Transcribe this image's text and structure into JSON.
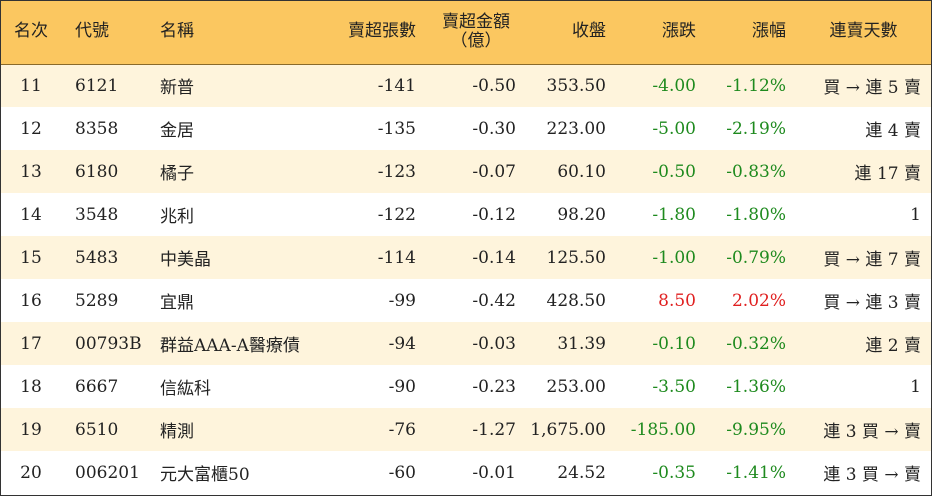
{
  "header": {
    "rank": "名次",
    "code": "代號",
    "name": "名稱",
    "sell_lots": "賣超張數",
    "sell_amount_line1": "賣超金額",
    "sell_amount_line2": "（億）",
    "close": "收盤",
    "change": "漲跌",
    "pct": "漲幅",
    "streak": "連賣天數"
  },
  "colors": {
    "header_bg": "#fbc760",
    "odd_row_bg": "#fef4dc",
    "up": "#e02020",
    "down": "#1e8a1e"
  },
  "rows": [
    {
      "rank": "11",
      "code": "6121",
      "name": "新普",
      "lots": "-141",
      "amount": "-0.50",
      "close": "353.50",
      "change": "-4.00",
      "pct": "-1.12%",
      "dir": "neg",
      "streak": "買 → 連 5 賣"
    },
    {
      "rank": "12",
      "code": "8358",
      "name": "金居",
      "lots": "-135",
      "amount": "-0.30",
      "close": "223.00",
      "change": "-5.00",
      "pct": "-2.19%",
      "dir": "neg",
      "streak": "連 4 賣"
    },
    {
      "rank": "13",
      "code": "6180",
      "name": "橘子",
      "lots": "-123",
      "amount": "-0.07",
      "close": "60.10",
      "change": "-0.50",
      "pct": "-0.83%",
      "dir": "neg",
      "streak": "連 17 賣"
    },
    {
      "rank": "14",
      "code": "3548",
      "name": "兆利",
      "lots": "-122",
      "amount": "-0.12",
      "close": "98.20",
      "change": "-1.80",
      "pct": "-1.80%",
      "dir": "neg",
      "streak": "1"
    },
    {
      "rank": "15",
      "code": "5483",
      "name": "中美晶",
      "lots": "-114",
      "amount": "-0.14",
      "close": "125.50",
      "change": "-1.00",
      "pct": "-0.79%",
      "dir": "neg",
      "streak": "買 → 連 7 賣"
    },
    {
      "rank": "16",
      "code": "5289",
      "name": "宜鼎",
      "lots": "-99",
      "amount": "-0.42",
      "close": "428.50",
      "change": "8.50",
      "pct": "2.02%",
      "dir": "pos",
      "streak": "買 → 連 3 賣"
    },
    {
      "rank": "17",
      "code": "00793B",
      "name": "群益AAA-A醫療債",
      "lots": "-94",
      "amount": "-0.03",
      "close": "31.39",
      "change": "-0.10",
      "pct": "-0.32%",
      "dir": "neg",
      "streak": "連 2 賣"
    },
    {
      "rank": "18",
      "code": "6667",
      "name": "信紘科",
      "lots": "-90",
      "amount": "-0.23",
      "close": "253.00",
      "change": "-3.50",
      "pct": "-1.36%",
      "dir": "neg",
      "streak": "1"
    },
    {
      "rank": "19",
      "code": "6510",
      "name": "精測",
      "lots": "-76",
      "amount": "-1.27",
      "close": "1,675.00",
      "change": "-185.00",
      "pct": "-9.95%",
      "dir": "neg",
      "streak": "連 3 買 → 賣"
    },
    {
      "rank": "20",
      "code": "006201",
      "name": "元大富櫃50",
      "lots": "-60",
      "amount": "-0.01",
      "close": "24.52",
      "change": "-0.35",
      "pct": "-1.41%",
      "dir": "neg",
      "streak": "連 3 買 → 賣"
    }
  ]
}
